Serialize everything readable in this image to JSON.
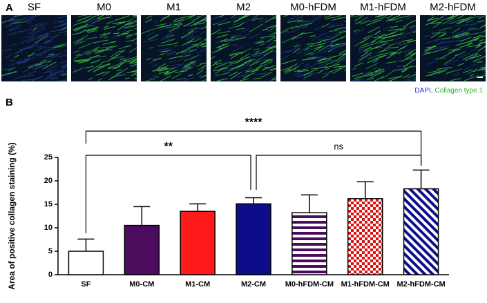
{
  "panel_a": {
    "label": "A",
    "image_titles": [
      "SF",
      "M0",
      "M1",
      "M2",
      "M0-hFDM",
      "M1-hFDM",
      "M2-hFDM"
    ],
    "legend": [
      {
        "text": "DAPI,",
        "color": "#2b2bd6"
      },
      {
        "text": "Collagen type 1",
        "color": "#22b422"
      }
    ]
  },
  "chart_data": {
    "type": "bar",
    "panel_label": "B",
    "ylabel": "Area of positive collagen staining (%)",
    "categories": [
      "SF",
      "M0-CM",
      "M1-CM",
      "M2-CM",
      "M0-hFDM-CM",
      "M1-hFDM-CM",
      "M2-hFDM-CM"
    ],
    "values": [
      5.0,
      10.5,
      13.5,
      15.1,
      13.2,
      16.2,
      18.3
    ],
    "errors": [
      2.6,
      4.0,
      1.6,
      1.3,
      3.8,
      3.6,
      4.0
    ],
    "colors": [
      "#ffffff",
      "#4b0c5e",
      "#ff1a1a",
      "#0d0d8a",
      "#4b0c5e",
      "#e01010",
      "#0d0d8a"
    ],
    "patterns": [
      "solid",
      "solid",
      "solid",
      "solid",
      "hstripe",
      "check",
      "diag"
    ],
    "ylim": [
      0,
      25
    ],
    "yticks": [
      0,
      5,
      10,
      15,
      20,
      25
    ],
    "significance": [
      {
        "from": 0,
        "to": 6,
        "label": "****"
      },
      {
        "from": 0,
        "to": 3,
        "label": "**"
      },
      {
        "from": 3,
        "to": 6,
        "label": "ns"
      }
    ]
  }
}
